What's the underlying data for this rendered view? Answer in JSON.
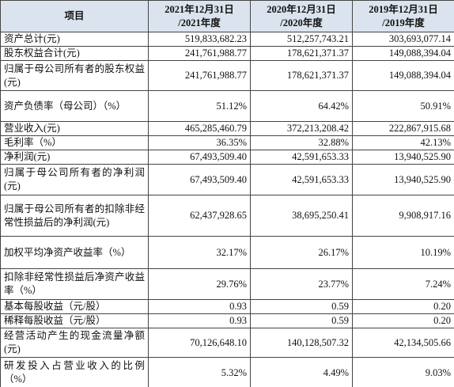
{
  "table": {
    "columns": [
      [
        "项目"
      ],
      [
        "2021年12月31日",
        "/2021年度"
      ],
      [
        "2020年12月31日",
        "/2020年度"
      ],
      [
        "2019年12月31日",
        "/2019年度"
      ]
    ],
    "rows": [
      [
        "资产总计(元)",
        "519,833,682.23",
        "512,257,743.21",
        "303,693,077.14"
      ],
      [
        "股东权益合计(元)",
        "241,761,988.77",
        "178,621,371.37",
        "149,088,394.04"
      ],
      [
        "归属于母公司所有者的股东权益(元)",
        "241,761,988.77",
        "178,621,371.37",
        "149,088,394.04"
      ],
      [
        "资产负债率（母公司）（%）",
        "51.12%",
        "64.42%",
        "50.91%"
      ],
      [
        "营业收入(元)",
        "465,285,460.79",
        "372,213,208.42",
        "222,867,915.68"
      ],
      [
        "毛利率（%）",
        "36.35%",
        "32.88%",
        "42.13%"
      ],
      [
        "净利润(元)",
        "67,493,509.40",
        "42,591,653.33",
        "13,940,525.90"
      ],
      [
        "归属于母公司所有者的净利润(元)",
        "67,493,509.40",
        "42,591,653.33",
        "13,940,525.90"
      ],
      [
        "归属于母公司所有者的扣除非经常性损益后的净利润(元)",
        "62,437,928.65",
        "38,695,250.41",
        "9,908,917.16"
      ],
      [
        "加权平均净资产收益率（%）",
        "32.17%",
        "26.17%",
        "10.19%"
      ],
      [
        "扣除非经常性损益后净资产收益率（%）",
        "29.76%",
        "23.77%",
        "7.24%"
      ],
      [
        "基本每股收益（元/股）",
        "0.93",
        "0.59",
        "0.20"
      ],
      [
        "稀释每股收益（元/股）",
        "0.93",
        "0.59",
        "0.20"
      ],
      [
        "经营活动产生的现金流量净额(元)",
        "70,126,648.10",
        "140,128,507.32",
        "42,134,505.66"
      ],
      [
        "研发投入占营业收入的比例（%）",
        "5.32%",
        "4.49%",
        "9.03%"
      ]
    ]
  }
}
